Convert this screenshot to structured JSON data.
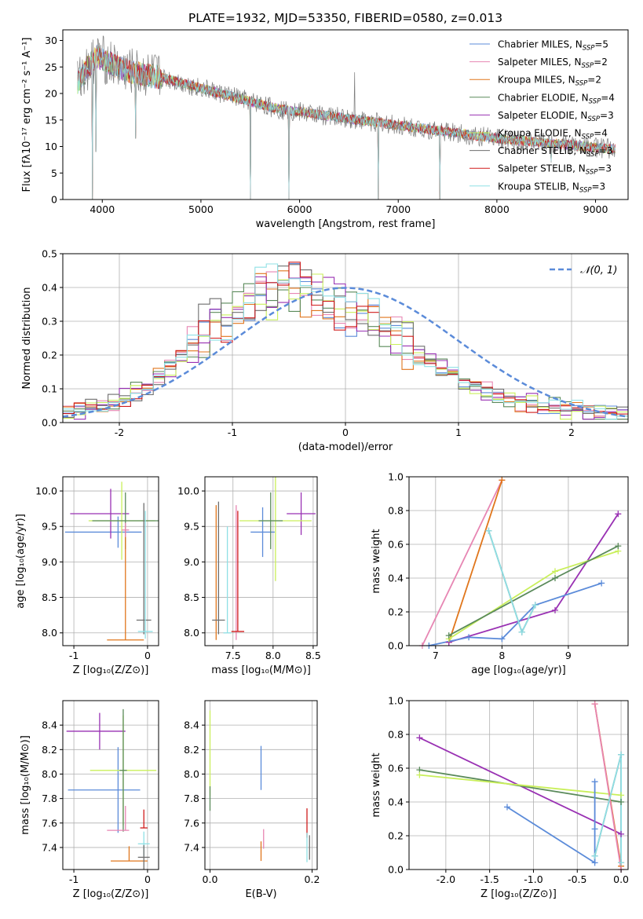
{
  "figure": {
    "title": "PLATE=1932, MJD=53350, FIBERID=0580, z=0.013"
  },
  "colors": {
    "chabrier_miles": "#5b8bd9",
    "salpeter_miles": "#e786b3",
    "kroupa_miles": "#e0761c",
    "chabrier_elodie": "#5a8a5a",
    "salpeter_elodie": "#9931b3",
    "kroupa_elodie": "#c9ef5a",
    "chabrier_stelib": "#6e6e6e",
    "salpeter_stelib": "#d01c1c",
    "kroupa_stelib": "#8fe0e5",
    "normal_curve": "#5b8bd9"
  },
  "chart_data": [
    {
      "type": "line",
      "panel": "spectrum",
      "xlabel": "wavelength [Angstrom, rest frame]",
      "ylabel": "Flux [fλ10⁻¹⁷ erg cm⁻² s⁻¹ A⁻¹]",
      "xlim": [
        3600,
        9330
      ],
      "ylim": [
        0,
        32
      ],
      "xticks": [
        4000,
        5000,
        6000,
        7000,
        8000,
        9000
      ],
      "yticks": [
        0,
        5,
        10,
        15,
        20,
        25,
        30
      ],
      "legend_position": "top-right",
      "data_x": [
        3750,
        3850,
        3950,
        4050,
        4150,
        4300,
        4450,
        4600,
        4800,
        5000,
        5200,
        5400,
        5600,
        5800,
        6000,
        6200,
        6400,
        6600,
        6800,
        7000,
        7200,
        7400,
        7600,
        7800,
        8000,
        8200,
        8400,
        8600,
        8800,
        9000,
        9200
      ],
      "data_y": [
        22,
        25,
        27,
        26,
        25,
        24,
        23.5,
        23,
        22,
        21,
        20,
        19,
        18,
        17,
        16.5,
        16,
        15.5,
        15,
        14.5,
        14,
        13.5,
        13,
        12.5,
        12,
        11.5,
        11.2,
        10.8,
        10.5,
        10.2,
        9.8,
        9.5
      ],
      "noise_amplitude": 1.2,
      "dips": [
        {
          "x": 3900,
          "y": 0
        },
        {
          "x": 3935,
          "y": 9
        },
        {
          "x": 4340,
          "y": 11.5
        },
        {
          "x": 5500,
          "y": 0
        },
        {
          "x": 5890,
          "y": 0
        },
        {
          "x": 6800,
          "y": 0
        },
        {
          "x": 7420,
          "y": 0
        },
        {
          "x": 8550,
          "y": 7
        }
      ],
      "spikes": [
        {
          "x": 6560,
          "y": 24
        }
      ],
      "series": [
        {
          "name": "Chabrier MILES, N",
          "nssp": "SSP",
          "nval": "=5",
          "color_key": "chabrier_miles"
        },
        {
          "name": "Salpeter MILES, N",
          "nssp": "SSP",
          "nval": "=2",
          "color_key": "salpeter_miles"
        },
        {
          "name": "Kroupa MILES, N",
          "nssp": "SSP",
          "nval": "=2",
          "color_key": "kroupa_miles"
        },
        {
          "name": "Chabrier ELODIE, N",
          "nssp": "SSP",
          "nval": "=4",
          "color_key": "chabrier_elodie"
        },
        {
          "name": "Salpeter ELODIE, N",
          "nssp": "SSP",
          "nval": "=3",
          "color_key": "salpeter_elodie"
        },
        {
          "name": "Kroupa ELODIE, N",
          "nssp": "SSP",
          "nval": "=4",
          "color_key": "kroupa_elodie"
        },
        {
          "name": "Chabrier STELIB, N",
          "nssp": "SSP",
          "nval": "=3",
          "color_key": "chabrier_stelib"
        },
        {
          "name": "Salpeter STELIB, N",
          "nssp": "SSP",
          "nval": "=3",
          "color_key": "salpeter_stelib"
        },
        {
          "name": "Kroupa STELIB, N",
          "nssp": "SSP",
          "nval": "=3",
          "color_key": "kroupa_stelib"
        }
      ]
    },
    {
      "type": "histogram",
      "panel": "residuals",
      "xlabel": "(data-model)/error",
      "ylabel": "Normed distribution",
      "xlim": [
        -2.5,
        2.5
      ],
      "ylim": [
        0,
        0.5
      ],
      "xticks": [
        -2,
        -1,
        0,
        1,
        2
      ],
      "yticks": [
        0.0,
        0.1,
        0.2,
        0.3,
        0.4,
        0.5
      ],
      "grid": true,
      "legend_label": "𝒩(0, 1)",
      "legend_position": "top-right",
      "bin_width": 0.1,
      "base_profile": [
        0.03,
        0.035,
        0.04,
        0.05,
        0.06,
        0.07,
        0.09,
        0.11,
        0.13,
        0.16,
        0.2,
        0.24,
        0.27,
        0.3,
        0.32,
        0.34,
        0.36,
        0.38,
        0.39,
        0.4,
        0.4,
        0.39,
        0.38,
        0.37,
        0.36,
        0.34,
        0.32,
        0.3,
        0.27,
        0.25,
        0.23,
        0.2,
        0.18,
        0.16,
        0.14,
        0.12,
        0.1,
        0.09,
        0.08,
        0.07,
        0.06,
        0.055,
        0.05,
        0.045,
        0.04,
        0.035,
        0.03,
        0.028,
        0.025,
        0.022
      ]
    },
    {
      "type": "scatter",
      "panel": "age_vs_Z",
      "xlabel": "Z [log₁₀(Z/Z⊙)]",
      "ylabel": "age  [log₁₀(age/yr)]",
      "xlim": [
        -1.15,
        0.15
      ],
      "ylim": [
        7.82,
        10.2
      ],
      "xticks": [
        -1,
        0
      ],
      "yticks": [
        8.0,
        8.5,
        9.0,
        9.5,
        10.0
      ],
      "grid": true,
      "points": [
        {
          "color_key": "chabrier_miles",
          "x": -0.4,
          "xerr": [
            0.72,
            0.32
          ],
          "y": 9.42,
          "yerr": [
            0.22,
            0.22
          ]
        },
        {
          "color_key": "salpeter_elodie",
          "x": -0.5,
          "xerr": [
            0.55,
            0.25
          ],
          "y": 9.68,
          "yerr": [
            0.35,
            0.35
          ]
        },
        {
          "color_key": "kroupa_elodie",
          "x": -0.35,
          "xerr": [
            0.45,
            0.45
          ],
          "y": 9.58,
          "yerr": [
            0.55,
            0.55
          ]
        },
        {
          "color_key": "chabrier_elodie",
          "x": -0.3,
          "xerr": [
            0.45,
            0.45
          ],
          "y": 9.58,
          "yerr": [
            0.4,
            0.4
          ]
        },
        {
          "color_key": "kroupa_miles",
          "x": -0.3,
          "xerr": [
            0.25,
            0.25
          ],
          "y": 7.9,
          "yerr": [
            0,
            1.6
          ]
        },
        {
          "color_key": "salpeter_miles",
          "x": -0.3,
          "xerr": [
            0.05,
            0.05
          ],
          "y": 9.45,
          "yerr": [
            0.1,
            0.1
          ]
        },
        {
          "color_key": "chabrier_stelib",
          "x": -0.05,
          "xerr": [
            0.1,
            0.1
          ],
          "y": 8.18,
          "yerr": [
            0.2,
            1.65
          ]
        },
        {
          "color_key": "kroupa_stelib",
          "x": -0.03,
          "xerr": [
            0.1,
            0.1
          ],
          "y": 8.02,
          "yerr": [
            0.1,
            1.7
          ]
        }
      ]
    },
    {
      "type": "scatter",
      "panel": "age_vs_mass",
      "xlabel": "mass [log₁₀(M/M⊙)]",
      "ylabel": "",
      "xlim": [
        7.15,
        8.55
      ],
      "ylim": [
        7.82,
        10.2
      ],
      "xticks": [
        7.5,
        8.0,
        8.5
      ],
      "yticks": [
        8.0,
        8.5,
        9.0,
        9.5,
        10.0
      ],
      "grid": true,
      "points": [
        {
          "color_key": "chabrier_miles",
          "x": 7.87,
          "xerr": [
            0.15,
            0.15
          ],
          "y": 9.42,
          "yerr": [
            0.35,
            0.35
          ]
        },
        {
          "color_key": "salpeter_elodie",
          "x": 8.35,
          "xerr": [
            0.18,
            0.18
          ],
          "y": 9.68,
          "yerr": [
            0.3,
            0.3
          ]
        },
        {
          "color_key": "kroupa_elodie",
          "x": 8.03,
          "xerr": [
            0.45,
            0.45
          ],
          "y": 9.58,
          "yerr": [
            0.85,
            0.85
          ]
        },
        {
          "color_key": "chabrier_elodie",
          "x": 7.97,
          "xerr": [
            0.15,
            0.15
          ],
          "y": 9.58,
          "yerr": [
            0.4,
            0.4
          ]
        },
        {
          "color_key": "kroupa_miles",
          "x": 7.29,
          "xerr": [
            0,
            0
          ],
          "y": 7.9,
          "yerr": [
            0,
            1.9
          ]
        },
        {
          "color_key": "salpeter_miles",
          "x": 7.54,
          "xerr": [
            0,
            0
          ],
          "y": 7.9,
          "yerr": [
            0,
            1.9
          ]
        },
        {
          "color_key": "chabrier_stelib",
          "x": 7.32,
          "xerr": [
            0.08,
            0.08
          ],
          "y": 8.18,
          "yerr": [
            0.2,
            1.67
          ]
        },
        {
          "color_key": "salpeter_stelib",
          "x": 7.56,
          "xerr": [
            0.08,
            0.08
          ],
          "y": 8.02,
          "yerr": [
            0,
            1.7
          ]
        },
        {
          "color_key": "kroupa_stelib",
          "x": 7.43,
          "xerr": [
            0.05,
            0.05
          ],
          "y": 8.0,
          "yerr": [
            0,
            1.5
          ]
        }
      ]
    },
    {
      "type": "line",
      "panel": "weight_vs_age",
      "xlabel": "age  [log₁₀(age/yr)]",
      "ylabel": "mass weight",
      "xlim": [
        6.6,
        9.9
      ],
      "ylim": [
        0,
        1.0
      ],
      "xticks": [
        7,
        8,
        9
      ],
      "yticks": [
        0.0,
        0.2,
        0.4,
        0.6,
        0.8,
        1.0
      ],
      "grid": true,
      "series": [
        {
          "color_key": "salpeter_miles",
          "x": [
            6.8,
            8.0
          ],
          "y": [
            0.0,
            0.98
          ]
        },
        {
          "color_key": "kroupa_miles",
          "x": [
            7.2,
            8.0
          ],
          "y": [
            0.02,
            0.98
          ]
        },
        {
          "color_key": "salpeter_elodie",
          "x": [
            7.2,
            8.8,
            9.75
          ],
          "y": [
            0.02,
            0.21,
            0.78
          ]
        },
        {
          "color_key": "kroupa_elodie",
          "x": [
            7.2,
            8.8,
            9.75
          ],
          "y": [
            0.04,
            0.44,
            0.56
          ]
        },
        {
          "color_key": "chabrier_elodie",
          "x": [
            7.2,
            8.8,
            9.75
          ],
          "y": [
            0.06,
            0.4,
            0.59
          ]
        },
        {
          "color_key": "chabrier_miles",
          "x": [
            6.9,
            7.5,
            8.0,
            8.5,
            9.5
          ],
          "y": [
            0.0,
            0.05,
            0.04,
            0.24,
            0.37
          ]
        },
        {
          "color_key": "chabrier_stelib",
          "x": [
            7.8,
            8.3,
            8.5
          ],
          "y": [
            0.68,
            0.08,
            0.24
          ]
        },
        {
          "color_key": "kroupa_stelib",
          "x": [
            7.8,
            8.3,
            8.5
          ],
          "y": [
            0.68,
            0.08,
            0.24
          ]
        }
      ]
    },
    {
      "type": "scatter",
      "panel": "mass_vs_Z",
      "xlabel": "Z [log₁₀(Z/Z⊙)]",
      "ylabel": "mass [log₁₀(M/M⊙)]",
      "xlim": [
        -1.15,
        0.15
      ],
      "ylim": [
        7.22,
        8.6
      ],
      "xticks": [
        -1,
        0
      ],
      "yticks": [
        7.4,
        7.6,
        7.8,
        8.0,
        8.2,
        8.4
      ],
      "grid": true,
      "points": [
        {
          "color_key": "chabrier_miles",
          "x": -0.4,
          "xerr": [
            0.68,
            0.3
          ],
          "y": 7.87,
          "yerr": [
            0.35,
            0.35
          ]
        },
        {
          "color_key": "salpeter_elodie",
          "x": -0.65,
          "xerr": [
            0.45,
            0.35
          ],
          "y": 8.35,
          "yerr": [
            0.15,
            0.15
          ]
        },
        {
          "color_key": "kroupa_elodie",
          "x": -0.33,
          "xerr": [
            0.45,
            0.45
          ],
          "y": 8.03,
          "yerr": [
            0.45,
            0.45
          ]
        },
        {
          "color_key": "chabrier_elodie",
          "x": -0.33,
          "xerr": [
            0.05,
            0.05
          ],
          "y": 8.03,
          "yerr": [
            0.5,
            0.5
          ]
        },
        {
          "color_key": "kroupa_miles",
          "x": -0.25,
          "xerr": [
            0.25,
            0.25
          ],
          "y": 7.29,
          "yerr": [
            0,
            0.12
          ]
        },
        {
          "color_key": "salpeter_miles",
          "x": -0.3,
          "xerr": [
            0.25,
            0.05
          ],
          "y": 7.54,
          "yerr": [
            0,
            0.2
          ]
        },
        {
          "color_key": "salpeter_stelib",
          "x": -0.05,
          "xerr": [
            0.05,
            0.05
          ],
          "y": 7.56,
          "yerr": [
            0,
            0.15
          ]
        },
        {
          "color_key": "kroupa_stelib",
          "x": -0.05,
          "xerr": [
            0.08,
            0.08
          ],
          "y": 7.43,
          "yerr": [
            0.1,
            0.1
          ]
        },
        {
          "color_key": "chabrier_stelib",
          "x": -0.05,
          "xerr": [
            0.08,
            0.08
          ],
          "y": 7.32,
          "yerr": [
            0.1,
            0.1
          ]
        }
      ]
    },
    {
      "type": "scatter",
      "panel": "mass_vs_EBV",
      "xlabel": "E(B-V)",
      "ylabel": "",
      "xlim": [
        -0.01,
        0.21
      ],
      "ylim": [
        7.22,
        8.6
      ],
      "xticks": [
        0.0,
        0.2
      ],
      "yticks": [
        7.4,
        7.6,
        7.8,
        8.0,
        8.2,
        8.4
      ],
      "grid": true,
      "points": [
        {
          "color_key": "kroupa_elodie",
          "x": 0.0,
          "y": 8.17,
          "yerr": [
            0.35,
            0.35
          ]
        },
        {
          "color_key": "chabrier_elodie",
          "x": 0.0,
          "y": 7.8,
          "yerr": [
            0.1,
            0.1
          ]
        },
        {
          "color_key": "chabrier_miles",
          "x": 0.1,
          "y": 8.05,
          "yerr": [
            0.18,
            0.18
          ]
        },
        {
          "color_key": "kroupa_miles",
          "x": 0.1,
          "y": 7.37,
          "yerr": [
            0.08,
            0.08
          ]
        },
        {
          "color_key": "salpeter_miles",
          "x": 0.105,
          "y": 7.47,
          "yerr": [
            0.08,
            0.08
          ]
        },
        {
          "color_key": "salpeter_stelib",
          "x": 0.19,
          "y": 7.6,
          "yerr": [
            0.12,
            0.12
          ]
        },
        {
          "color_key": "kroupa_stelib",
          "x": 0.19,
          "y": 7.4,
          "yerr": [
            0.12,
            0.12
          ]
        },
        {
          "color_key": "chabrier_stelib",
          "x": 0.195,
          "y": 7.4,
          "yerr": [
            0.1,
            0.1
          ]
        }
      ]
    },
    {
      "type": "line",
      "panel": "weight_vs_Z",
      "xlabel": "Z [log₁₀(Z/Z⊙)]",
      "ylabel": "mass weight",
      "xlim": [
        -2.42,
        0.08
      ],
      "ylim": [
        0,
        1.0
      ],
      "xticks": [
        -2.0,
        -1.5,
        -1.0,
        -0.5,
        0.0
      ],
      "yticks": [
        0.0,
        0.2,
        0.4,
        0.6,
        0.8,
        1.0
      ],
      "grid": true,
      "series": [
        {
          "color_key": "salpeter_elodie",
          "x": [
            -2.3,
            0.0
          ],
          "y": [
            0.78,
            0.21
          ]
        },
        {
          "color_key": "chabrier_elodie",
          "x": [
            -2.3,
            0.0
          ],
          "y": [
            0.59,
            0.4
          ]
        },
        {
          "color_key": "kroupa_elodie",
          "x": [
            -2.3,
            0.0
          ],
          "y": [
            0.56,
            0.44
          ]
        },
        {
          "color_key": "chabrier_miles",
          "x": [
            -1.3,
            -0.3,
            -0.3,
            -0.3
          ],
          "y": [
            0.37,
            0.04,
            0.52,
            0.24
          ]
        },
        {
          "color_key": "kroupa_miles",
          "x": [
            -0.3,
            0.0
          ],
          "y": [
            0.98,
            0.02
          ]
        },
        {
          "color_key": "salpeter_miles",
          "x": [
            -0.3,
            0.0
          ],
          "y": [
            0.98,
            0.0
          ]
        },
        {
          "color_key": "chabrier_stelib",
          "x": [
            -0.3,
            0.0,
            0.0
          ],
          "y": [
            0.08,
            0.68,
            0.04
          ]
        },
        {
          "color_key": "kroupa_stelib",
          "x": [
            -0.3,
            0.0,
            0.0
          ],
          "y": [
            0.08,
            0.68,
            0.04
          ]
        }
      ]
    }
  ]
}
